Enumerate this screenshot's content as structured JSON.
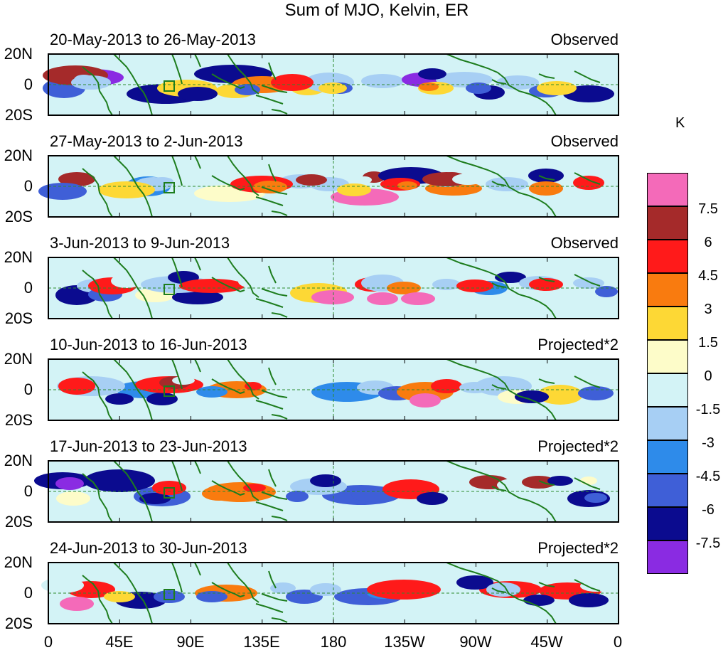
{
  "title": "Sum of MJO, Kelvin, ER",
  "units": "K",
  "lat_labels": [
    "20N",
    "0",
    "20S"
  ],
  "lon_labels": [
    "0",
    "45E",
    "90E",
    "135E",
    "180",
    "135W",
    "90W",
    "45W",
    "0"
  ],
  "colorbar": {
    "levels": [
      "7.5",
      "6",
      "4.5",
      "3",
      "1.5",
      "0",
      "-1.5",
      "-3",
      "-4.5",
      "-6",
      "-7.5"
    ],
    "colors": [
      "#f46ab9",
      "#a52a2a",
      "#ff1a1a",
      "#f97b0f",
      "#fdd835",
      "#fdfcc9",
      "#d3f3f6",
      "#a7cff4",
      "#2e8bea",
      "#3f5fd7",
      "#0b0b8f",
      "#8a2be2"
    ]
  },
  "panels": [
    {
      "date_range": "20-May-2013 to 26-May-2013",
      "status": "Observed"
    },
    {
      "date_range": "27-May-2013 to 2-Jun-2013",
      "status": "Observed"
    },
    {
      "date_range": "3-Jun-2013 to 9-Jun-2013",
      "status": "Observed"
    },
    {
      "date_range": "10-Jun-2013 to 16-Jun-2013",
      "status": "Projected*2"
    },
    {
      "date_range": "17-Jun-2013 to 23-Jun-2013",
      "status": "Projected*2"
    },
    {
      "date_range": "24-Jun-2013 to 30-Jun-2013",
      "status": "Projected*2"
    }
  ]
}
